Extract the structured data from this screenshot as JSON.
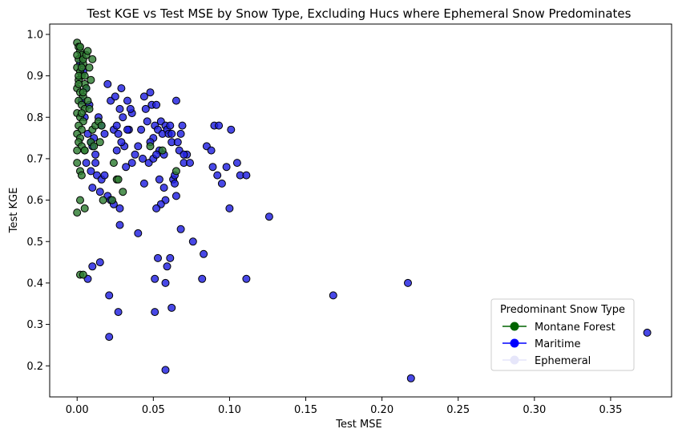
{
  "chart_data": {
    "type": "scatter",
    "title": "Test KGE vs Test MSE by Snow Type, Excluding Hucs where Ephemeral Snow Predominates",
    "xlabel": "Test MSE",
    "ylabel": "Test KGE",
    "xlim": [
      -0.018,
      0.39
    ],
    "ylim": [
      0.125,
      1.025
    ],
    "xticks": [
      "0.00",
      "0.05",
      "0.10",
      "0.15",
      "0.20",
      "0.25",
      "0.30",
      "0.35"
    ],
    "xtick_values": [
      0,
      0.05,
      0.1,
      0.15,
      0.2,
      0.25,
      0.3,
      0.35
    ],
    "yticks": [
      "0.2",
      "0.3",
      "0.4",
      "0.5",
      "0.6",
      "0.7",
      "0.8",
      "0.9",
      "1.0"
    ],
    "ytick_values": [
      0.2,
      0.3,
      0.4,
      0.5,
      0.6,
      0.7,
      0.8,
      0.9,
      1.0
    ],
    "grid": false,
    "legend": {
      "title": "Predominant Snow Type",
      "placement": "lower-right",
      "entries": [
        {
          "label": "Montane Forest",
          "color": "#006400"
        },
        {
          "label": "Maritime",
          "color": "#0000ff"
        },
        {
          "label": "Ephemeral",
          "color": "#e6e6fa"
        }
      ]
    },
    "series": [
      {
        "name": "Maritime",
        "color": "#2020e0",
        "points": [
          [
            0.002,
            0.93
          ],
          [
            0.004,
            0.91
          ],
          [
            0.006,
            0.87
          ],
          [
            0.003,
            0.84
          ],
          [
            0.005,
            0.8
          ],
          [
            0.007,
            0.76
          ],
          [
            0.009,
            0.74
          ],
          [
            0.01,
            0.73
          ],
          [
            0.012,
            0.71
          ],
          [
            0.006,
            0.69
          ],
          [
            0.009,
            0.67
          ],
          [
            0.01,
            0.63
          ],
          [
            0.013,
            0.66
          ],
          [
            0.016,
            0.65
          ],
          [
            0.015,
            0.62
          ],
          [
            0.018,
            0.66
          ],
          [
            0.02,
            0.61
          ],
          [
            0.022,
            0.6
          ],
          [
            0.024,
            0.59
          ],
          [
            0.028,
            0.58
          ],
          [
            0.014,
            0.8
          ],
          [
            0.016,
            0.78
          ],
          [
            0.018,
            0.76
          ],
          [
            0.02,
            0.88
          ],
          [
            0.022,
            0.84
          ],
          [
            0.024,
            0.77
          ],
          [
            0.025,
            0.85
          ],
          [
            0.026,
            0.78
          ],
          [
            0.027,
            0.76
          ],
          [
            0.028,
            0.82
          ],
          [
            0.029,
            0.87
          ],
          [
            0.03,
            0.8
          ],
          [
            0.031,
            0.73
          ],
          [
            0.032,
            0.68
          ],
          [
            0.033,
            0.84
          ],
          [
            0.034,
            0.77
          ],
          [
            0.036,
            0.81
          ],
          [
            0.038,
            0.71
          ],
          [
            0.04,
            0.73
          ],
          [
            0.042,
            0.77
          ],
          [
            0.043,
            0.7
          ],
          [
            0.044,
            0.85
          ],
          [
            0.045,
            0.82
          ],
          [
            0.046,
            0.79
          ],
          [
            0.047,
            0.69
          ],
          [
            0.048,
            0.86
          ],
          [
            0.049,
            0.83
          ],
          [
            0.05,
            0.75
          ],
          [
            0.051,
            0.78
          ],
          [
            0.052,
            0.83
          ],
          [
            0.053,
            0.77
          ],
          [
            0.054,
            0.72
          ],
          [
            0.055,
            0.79
          ],
          [
            0.056,
            0.76
          ],
          [
            0.057,
            0.71
          ],
          [
            0.058,
            0.78
          ],
          [
            0.059,
            0.77
          ],
          [
            0.06,
            0.76
          ],
          [
            0.061,
            0.78
          ],
          [
            0.062,
            0.74
          ],
          [
            0.063,
            0.65
          ],
          [
            0.064,
            0.66
          ],
          [
            0.065,
            0.84
          ],
          [
            0.066,
            0.74
          ],
          [
            0.067,
            0.72
          ],
          [
            0.068,
            0.76
          ],
          [
            0.069,
            0.78
          ],
          [
            0.07,
            0.69
          ],
          [
            0.072,
            0.71
          ],
          [
            0.074,
            0.69
          ],
          [
            0.057,
            0.63
          ],
          [
            0.058,
            0.6
          ],
          [
            0.065,
            0.61
          ],
          [
            0.055,
            0.59
          ],
          [
            0.052,
            0.58
          ],
          [
            0.064,
            0.64
          ],
          [
            0.054,
            0.65
          ],
          [
            0.044,
            0.64
          ],
          [
            0.05,
            0.7
          ],
          [
            0.052,
            0.71
          ],
          [
            0.085,
            0.73
          ],
          [
            0.088,
            0.72
          ],
          [
            0.09,
            0.78
          ],
          [
            0.093,
            0.78
          ],
          [
            0.089,
            0.68
          ],
          [
            0.092,
            0.66
          ],
          [
            0.095,
            0.64
          ],
          [
            0.098,
            0.68
          ],
          [
            0.101,
            0.77
          ],
          [
            0.105,
            0.69
          ],
          [
            0.107,
            0.66
          ],
          [
            0.111,
            0.66
          ],
          [
            0.1,
            0.58
          ],
          [
            0.126,
            0.56
          ],
          [
            0.068,
            0.53
          ],
          [
            0.04,
            0.52
          ],
          [
            0.028,
            0.54
          ],
          [
            0.076,
            0.5
          ],
          [
            0.083,
            0.47
          ],
          [
            0.053,
            0.46
          ],
          [
            0.061,
            0.46
          ],
          [
            0.059,
            0.44
          ],
          [
            0.015,
            0.45
          ],
          [
            0.01,
            0.44
          ],
          [
            0.007,
            0.41
          ],
          [
            0.051,
            0.41
          ],
          [
            0.058,
            0.4
          ],
          [
            0.082,
            0.41
          ],
          [
            0.111,
            0.41
          ],
          [
            0.217,
            0.4
          ],
          [
            0.021,
            0.37
          ],
          [
            0.168,
            0.37
          ],
          [
            0.062,
            0.34
          ],
          [
            0.027,
            0.33
          ],
          [
            0.051,
            0.33
          ],
          [
            0.021,
            0.27
          ],
          [
            0.374,
            0.28
          ],
          [
            0.058,
            0.19
          ],
          [
            0.219,
            0.17
          ],
          [
            0.036,
            0.69
          ],
          [
            0.012,
            0.69
          ],
          [
            0.029,
            0.74
          ],
          [
            0.035,
            0.82
          ],
          [
            0.008,
            0.83
          ],
          [
            0.011,
            0.75
          ],
          [
            0.048,
            0.74
          ],
          [
            0.062,
            0.76
          ],
          [
            0.07,
            0.71
          ],
          [
            0.033,
            0.77
          ],
          [
            0.026,
            0.72
          ]
        ]
      },
      {
        "name": "Montane Forest",
        "color": "#2e7d32",
        "points": [
          [
            0.0,
            0.98
          ],
          [
            0.001,
            0.97
          ],
          [
            0.002,
            0.96
          ],
          [
            0.003,
            0.95
          ],
          [
            0.001,
            0.94
          ],
          [
            0.004,
            0.93
          ],
          [
            0.0,
            0.92
          ],
          [
            0.002,
            0.91
          ],
          [
            0.003,
            0.9
          ],
          [
            0.001,
            0.89
          ],
          [
            0.005,
            0.88
          ],
          [
            0.0,
            0.87
          ],
          [
            0.002,
            0.86
          ],
          [
            0.004,
            0.85
          ],
          [
            0.001,
            0.84
          ],
          [
            0.003,
            0.83
          ],
          [
            0.005,
            0.82
          ],
          [
            0.0,
            0.81
          ],
          [
            0.002,
            0.8
          ],
          [
            0.004,
            0.79
          ],
          [
            0.001,
            0.78
          ],
          [
            0.003,
            0.77
          ],
          [
            0.0,
            0.76
          ],
          [
            0.002,
            0.75
          ],
          [
            0.001,
            0.74
          ],
          [
            0.003,
            0.73
          ],
          [
            0.0,
            0.72
          ],
          [
            0.004,
            0.94
          ],
          [
            0.006,
            0.95
          ],
          [
            0.007,
            0.96
          ],
          [
            0.01,
            0.94
          ],
          [
            0.008,
            0.92
          ],
          [
            0.009,
            0.89
          ],
          [
            0.006,
            0.87
          ],
          [
            0.007,
            0.84
          ],
          [
            0.008,
            0.82
          ],
          [
            0.01,
            0.77
          ],
          [
            0.009,
            0.74
          ],
          [
            0.011,
            0.73
          ],
          [
            0.012,
            0.78
          ],
          [
            0.014,
            0.79
          ],
          [
            0.016,
            0.78
          ],
          [
            0.015,
            0.74
          ],
          [
            0.005,
            0.72
          ],
          [
            0.0,
            0.69
          ],
          [
            0.002,
            0.67
          ],
          [
            0.003,
            0.66
          ],
          [
            0.005,
            0.72
          ],
          [
            0.024,
            0.69
          ],
          [
            0.026,
            0.65
          ],
          [
            0.027,
            0.65
          ],
          [
            0.03,
            0.62
          ],
          [
            0.017,
            0.6
          ],
          [
            0.023,
            0.6
          ],
          [
            0.002,
            0.6
          ],
          [
            0.005,
            0.58
          ],
          [
            0.0,
            0.57
          ],
          [
            0.002,
            0.42
          ],
          [
            0.004,
            0.42
          ],
          [
            0.048,
            0.73
          ],
          [
            0.056,
            0.72
          ],
          [
            0.065,
            0.67
          ],
          [
            0.001,
            0.88
          ],
          [
            0.003,
            0.92
          ],
          [
            0.0,
            0.95
          ],
          [
            0.002,
            0.97
          ],
          [
            0.001,
            0.9
          ],
          [
            0.005,
            0.9
          ],
          [
            0.004,
            0.86
          ],
          [
            0.003,
            0.81
          ]
        ]
      }
    ]
  }
}
